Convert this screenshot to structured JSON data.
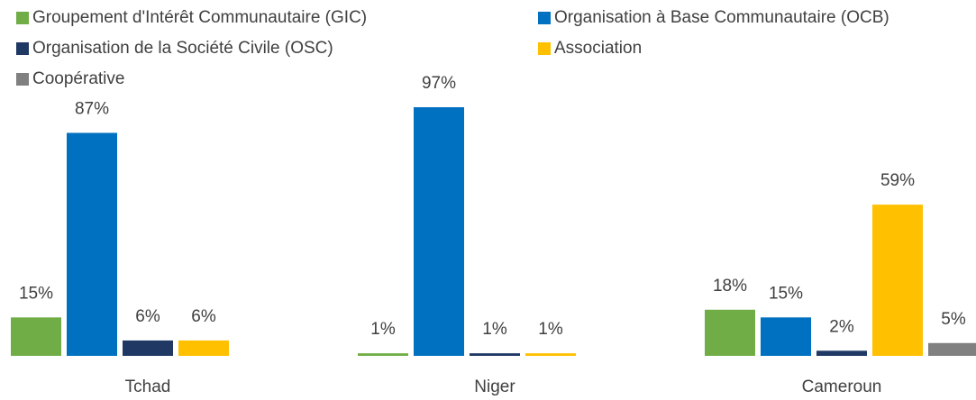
{
  "chart_data": {
    "type": "bar",
    "categories": [
      "Tchad",
      "Niger",
      "Cameroun"
    ],
    "series": [
      {
        "name": "Groupement d'Intérêt Communautaire (GIC)",
        "color": "#70ad47",
        "values": [
          15,
          1,
          18
        ],
        "value_labels": [
          "15%",
          "1%",
          "18%"
        ]
      },
      {
        "name": "Organisation à Base Communautaire (OCB)",
        "color": "#0070c0",
        "values": [
          87,
          97,
          15
        ],
        "value_labels": [
          "87%",
          "97%",
          "15%"
        ]
      },
      {
        "name": "Organisation de la Société Civile (OSC)",
        "color": "#1f3864",
        "values": [
          6,
          1,
          2
        ],
        "value_labels": [
          "6%",
          "1%",
          "2%"
        ]
      },
      {
        "name": "Association",
        "color": "#ffc000",
        "values": [
          6,
          1,
          59
        ],
        "value_labels": [
          "6%",
          "1%",
          "59%"
        ]
      },
      {
        "name": "Coopérative",
        "color": "#808080",
        "values": [
          null,
          null,
          5
        ],
        "value_labels": [
          null,
          null,
          "5%"
        ]
      }
    ],
    "ylim": [
      0,
      100
    ]
  }
}
